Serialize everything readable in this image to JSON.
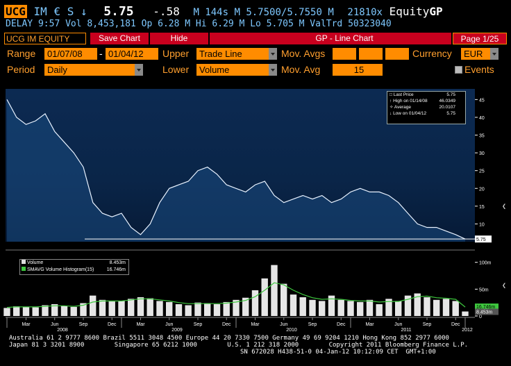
{
  "header": {
    "ticker": "UCG",
    "exchange": "IM",
    "currency_symbol": "€",
    "currency_code": "S",
    "arrow": "↓",
    "price": "5.75",
    "change": "-.58",
    "volume_line": "M 144s M 5.7500/5.7550 M",
    "size": "21810x",
    "equity_label": "Equity",
    "gp_label": "GP",
    "delay_line": "DELAY  9:57 Vol 8,453,181 Op 6.28 M Hi 6.29 M Lo 5.705 M ValTrd 50323040"
  },
  "tabs": {
    "security": "UCG IM EQUITY",
    "save_chart": "Save Chart",
    "hide": "Hide",
    "title": "GP - Line Chart",
    "page": "Page 1/25"
  },
  "controls": {
    "range_label": "Range",
    "range_start": "01/07/08",
    "range_sep": "-",
    "range_end": "01/04/12",
    "upper_label": "Upper",
    "upper_value": "Trade Line",
    "mov_avgs_label": "Mov. Avgs",
    "currency_label": "Currency",
    "currency_value": "EUR",
    "period_label": "Period",
    "period_value": "Daily",
    "lower_label": "Lower",
    "lower_value": "Volume",
    "mov_avg_label": "Mov. Avg",
    "mov_avg_value": "15",
    "events_label": "Events"
  },
  "legend": {
    "last_price_label": "Last Price",
    "last_price_value": "5.75",
    "high_label": "High on 01/14/08",
    "high_value": "46.0349",
    "average_label": "Average",
    "average_value": "20.0107",
    "low_label": "Low on 01/04/12",
    "low_value": "5.75"
  },
  "volume_legend": {
    "volume_label": "Volume",
    "volume_value": "8.453m",
    "smavg_label": "SMAVG Volume Histogram(15)",
    "smavg_value": "16.746m"
  },
  "price_axis": {
    "ticks": [
      "45",
      "40",
      "35",
      "30",
      "25",
      "20",
      "15",
      "10"
    ],
    "last_marker": "5.75"
  },
  "volume_axis": {
    "ticks": [
      "100m",
      "50m",
      "0"
    ],
    "markers": [
      "16.746m",
      "8.453m"
    ]
  },
  "x_axis": {
    "months": [
      "Mar",
      "Jun",
      "Sep",
      "Dec",
      "Mar",
      "Jun",
      "Sep",
      "Dec",
      "Mar",
      "Jun",
      "Sep",
      "Dec",
      "Mar",
      "Jun",
      "Sep",
      "Dec"
    ],
    "years": [
      "2008",
      "2009",
      "2010",
      "2011",
      "2012"
    ]
  },
  "footer": {
    "line1": "Australia 61 2 9777 8600 Brazil 5511 3048 4500 Europe 44 20 7330 7500 Germany 49 69 9204 1210 Hong Kong 852 2977 6000",
    "line2": "Japan 81 3 3201 8900        Singapore 65 6212 1000        U.S. 1 212 318 2000        Copyright 2011 Bloomberg Finance L.P.",
    "line3": "SN 672028 H438-51-0 04-Jan-12 10:12:09 CET  GMT+1:00"
  },
  "colors": {
    "accent_orange": "#ff8c00",
    "tab_red": "#c8001e",
    "header_blue": "#7ec8ff",
    "volume_ma_green": "#3ec83e"
  },
  "chart_data": {
    "type": "line",
    "title": "",
    "xlabel": "",
    "ylabel": "",
    "x": [
      "2008-01",
      "2008-02",
      "2008-03",
      "2008-04",
      "2008-05",
      "2008-06",
      "2008-07",
      "2008-08",
      "2008-09",
      "2008-10",
      "2008-11",
      "2008-12",
      "2009-01",
      "2009-02",
      "2009-03",
      "2009-04",
      "2009-05",
      "2009-06",
      "2009-07",
      "2009-08",
      "2009-09",
      "2009-10",
      "2009-11",
      "2009-12",
      "2010-01",
      "2010-02",
      "2010-03",
      "2010-04",
      "2010-05",
      "2010-06",
      "2010-07",
      "2010-08",
      "2010-09",
      "2010-10",
      "2010-11",
      "2010-12",
      "2011-01",
      "2011-02",
      "2011-03",
      "2011-04",
      "2011-05",
      "2011-06",
      "2011-07",
      "2011-08",
      "2011-09",
      "2011-10",
      "2011-11",
      "2011-12",
      "2012-01"
    ],
    "series": [
      {
        "values": [
          45,
          40,
          38,
          39,
          41,
          36,
          33,
          30,
          26,
          16,
          13,
          12,
          13,
          9,
          7,
          10,
          16,
          20,
          21,
          22,
          25,
          26,
          24,
          21,
          20,
          19,
          21,
          22,
          18,
          16,
          17,
          18,
          17,
          18,
          16,
          17,
          19,
          20,
          19,
          19,
          18,
          16,
          13,
          10,
          9,
          9,
          8,
          7,
          5.75
        ]
      },
      {
        "type": "volume",
        "unit": "m",
        "values": [
          15,
          18,
          17,
          16,
          20,
          22,
          19,
          17,
          24,
          38,
          30,
          27,
          28,
          32,
          35,
          33,
          28,
          26,
          22,
          20,
          25,
          24,
          22,
          26,
          30,
          34,
          48,
          70,
          95,
          60,
          40,
          35,
          30,
          28,
          38,
          30,
          28,
          26,
          30,
          22,
          32,
          28,
          38,
          42,
          35,
          30,
          32,
          28,
          8.453
        ]
      },
      {
        "type": "volume_moving_average",
        "window": 15,
        "unit": "m",
        "values": [
          16,
          17,
          17,
          17,
          18,
          19,
          19,
          18,
          20,
          26,
          28,
          28,
          28,
          30,
          32,
          32,
          30,
          28,
          25,
          23,
          23,
          23,
          23,
          24,
          26,
          29,
          36,
          48,
          62,
          58,
          48,
          40,
          34,
          31,
          32,
          31,
          29,
          28,
          28,
          26,
          27,
          27,
          31,
          36,
          37,
          34,
          33,
          31,
          16.746
        ]
      }
    ],
    "price_ylim": [
      5,
      48
    ],
    "volume_ylim": [
      0,
      110
    ],
    "grid": false,
    "legend": "top-right"
  }
}
